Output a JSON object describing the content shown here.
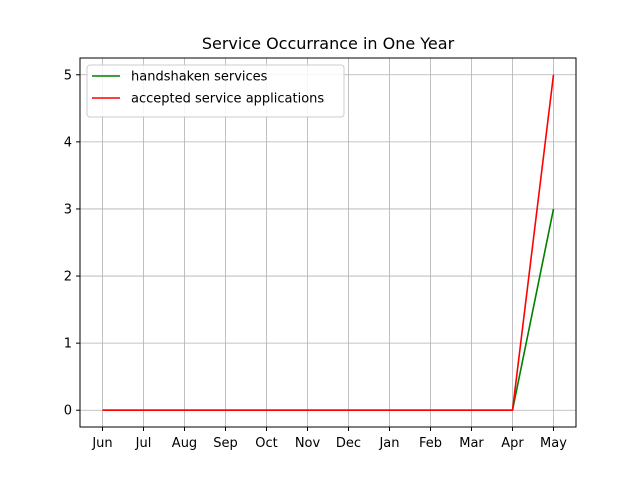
{
  "chart_data": {
    "type": "line",
    "title": "Service Occurrance in One Year",
    "xlabel": "",
    "ylabel": "",
    "categories": [
      "Jun",
      "Jul",
      "Aug",
      "Sep",
      "Oct",
      "Nov",
      "Dec",
      "Jan",
      "Feb",
      "Mar",
      "Apr",
      "May"
    ],
    "series": [
      {
        "name": "handshaken services",
        "color": "#008000",
        "values": [
          0,
          0,
          0,
          0,
          0,
          0,
          0,
          0,
          0,
          0,
          0,
          3
        ]
      },
      {
        "name": "accepted service applications",
        "color": "#ff0000",
        "values": [
          0,
          0,
          0,
          0,
          0,
          0,
          0,
          0,
          0,
          0,
          0,
          5
        ]
      }
    ],
    "ylim": [
      -0.25,
      5.25
    ],
    "yticks": [
      0,
      1,
      2,
      3,
      4,
      5
    ],
    "grid": true,
    "legend_position": "upper-left"
  }
}
